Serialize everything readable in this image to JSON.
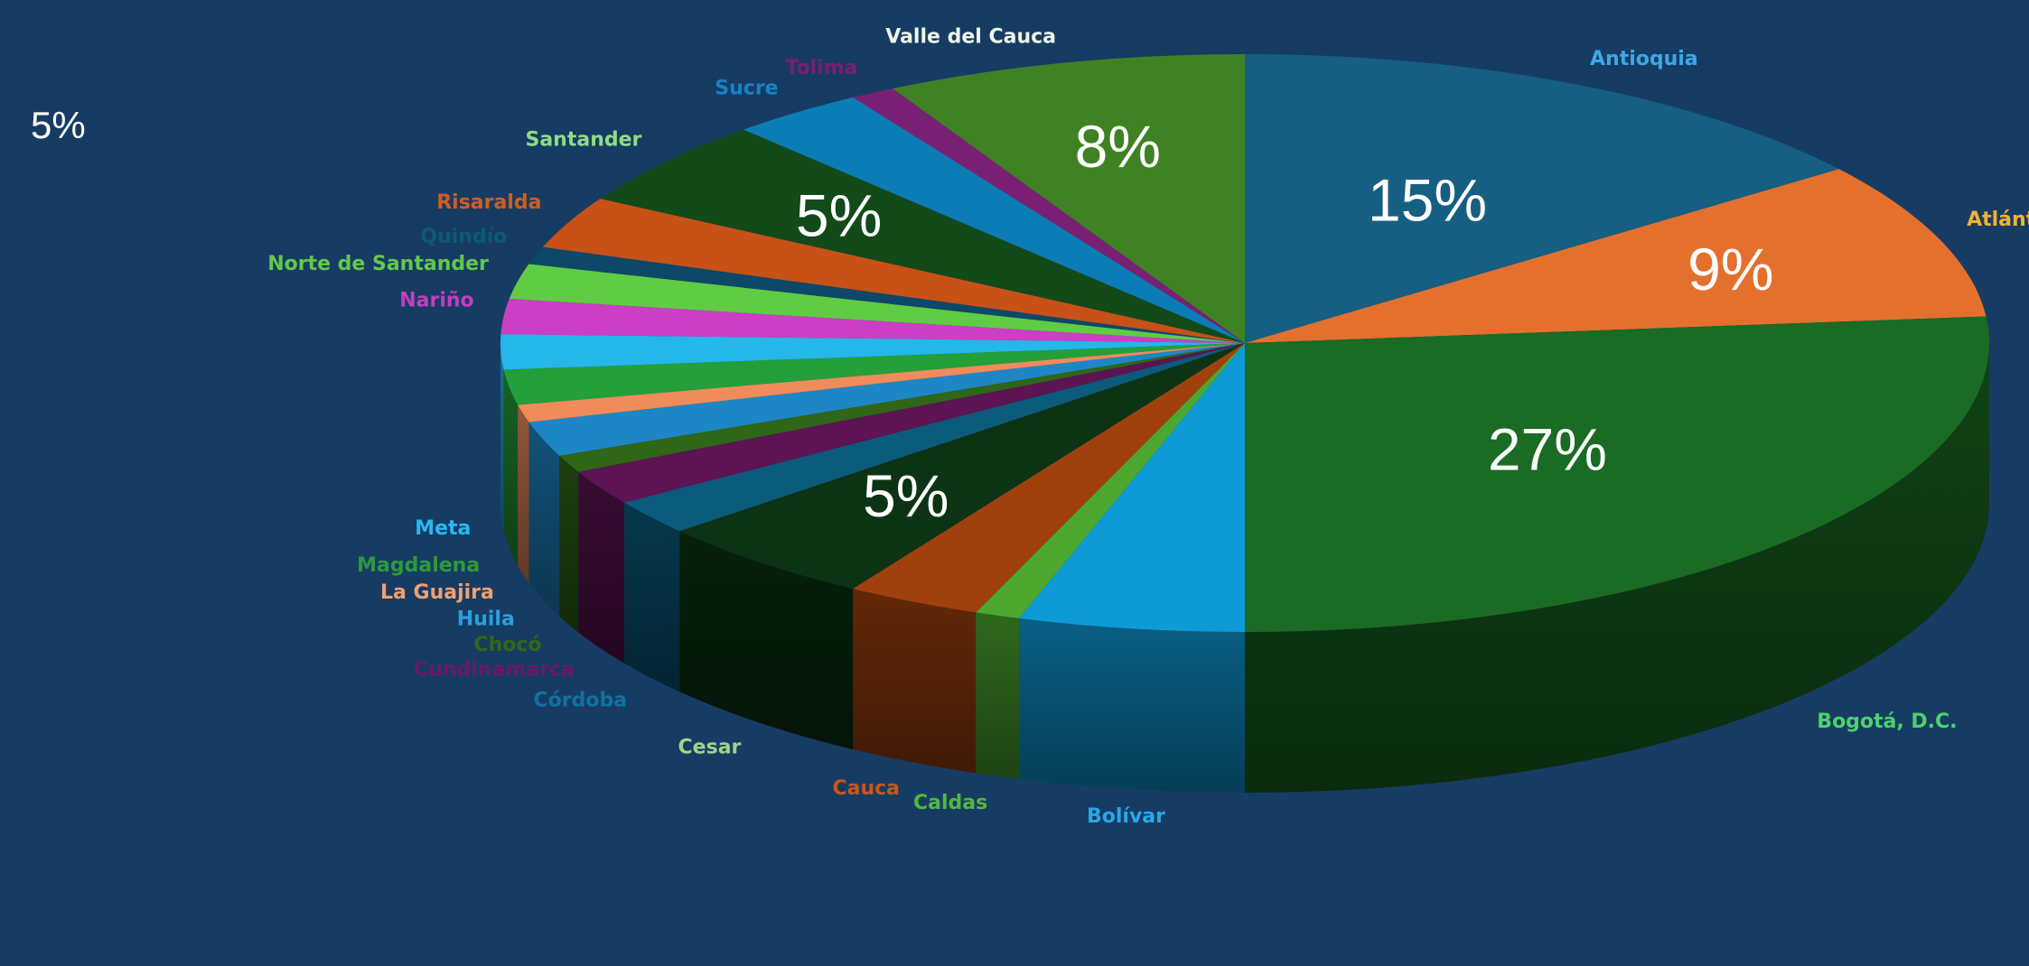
{
  "stray_label": "5%",
  "chart_data": {
    "type": "pie",
    "style": "3d",
    "background": "#173c64",
    "start_category": "Antioquia",
    "direction": "clockwise",
    "categories": [
      "Antioquia",
      "Atlántico",
      "Bogotá, D.C.",
      "Bolívar",
      "Caldas",
      "Cauca",
      "Cesar",
      "Córdoba",
      "Cundinamarca",
      "Chocó",
      "Huila",
      "La Guajira",
      "Magdalena",
      "Meta",
      "Nariño",
      "Norte de Santander",
      "Quindío",
      "Risaralda",
      "Santander",
      "Sucre",
      "Tolima",
      "Valle del Cauca"
    ],
    "values": [
      15,
      9,
      27,
      5,
      1,
      3,
      5,
      2,
      2,
      1,
      2,
      1,
      2,
      2,
      2,
      2,
      1,
      3,
      5,
      3,
      1,
      8
    ],
    "data_labels": [
      "15%",
      "9%",
      "27%",
      "",
      "",
      "",
      "5%",
      "",
      "",
      "",
      "",
      "",
      "",
      "",
      "",
      "",
      "",
      "",
      "5%",
      "",
      "",
      "8%"
    ],
    "colors": [
      "#165e82",
      "#e4702e",
      "#1a6b23",
      "#0e9ad6",
      "#4ca82e",
      "#a0410d",
      "#0c3414",
      "#0a5b7c",
      "#5c1452",
      "#2f6618",
      "#1f86c6",
      "#ef8c5a",
      "#23a03a",
      "#25b6ea",
      "#cc3fc4",
      "#5fcc44",
      "#0d4868",
      "#c75116",
      "#134a1a",
      "#0c7cb6",
      "#7a2074",
      "#3f8224"
    ],
    "label_colors": [
      "#3ca8e6",
      "#f2b232",
      "#4cd26a",
      "#2aa6ea",
      "#52b83c",
      "#c9561c",
      "#9ed38c",
      "#11729e",
      "#6c1a64",
      "#2f6a18",
      "#2a9fe0",
      "#f0a070",
      "#2c9a3a",
      "#2ab8f0",
      "#c33ec0",
      "#62c84e",
      "#0f5a73",
      "#d25c20",
      "#8fdc84",
      "#1a80c4",
      "#7a1f72",
      "#eef5ea"
    ],
    "legend": "none"
  }
}
